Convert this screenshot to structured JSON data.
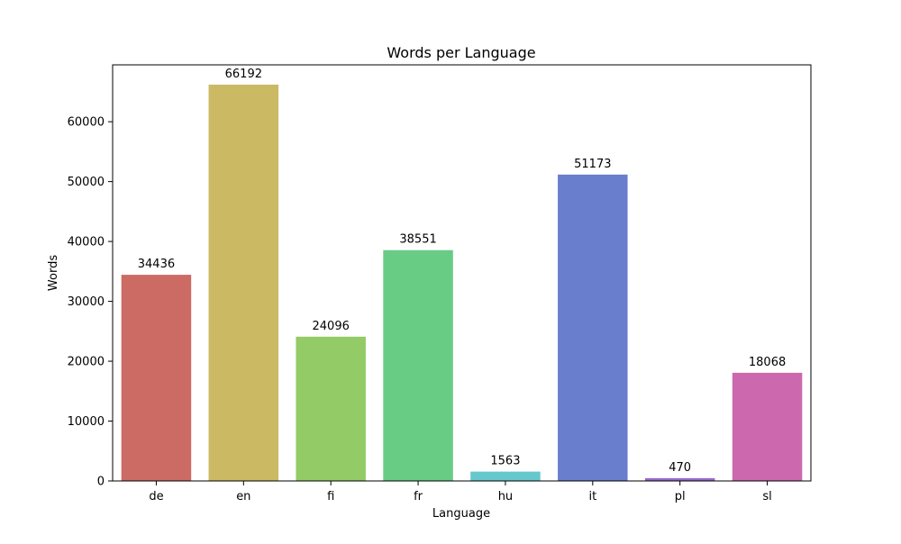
{
  "chart_data": {
    "type": "bar",
    "title": "Words per Language",
    "xlabel": "Language",
    "ylabel": "Words",
    "categories": [
      "de",
      "en",
      "fi",
      "fr",
      "hu",
      "it",
      "pl",
      "sl"
    ],
    "values": [
      34436,
      66192,
      24096,
      38551,
      1563,
      51173,
      470,
      18068
    ],
    "colors": [
      "#cc6b64",
      "#cbb964",
      "#93cb67",
      "#69cc84",
      "#66c7cc",
      "#697ecd",
      "#9a69cd",
      "#cb68ae"
    ],
    "yticks": [
      0,
      10000,
      20000,
      30000,
      40000,
      50000,
      60000
    ],
    "ylim": [
      0,
      69500
    ],
    "grid": false,
    "legend": "none"
  }
}
